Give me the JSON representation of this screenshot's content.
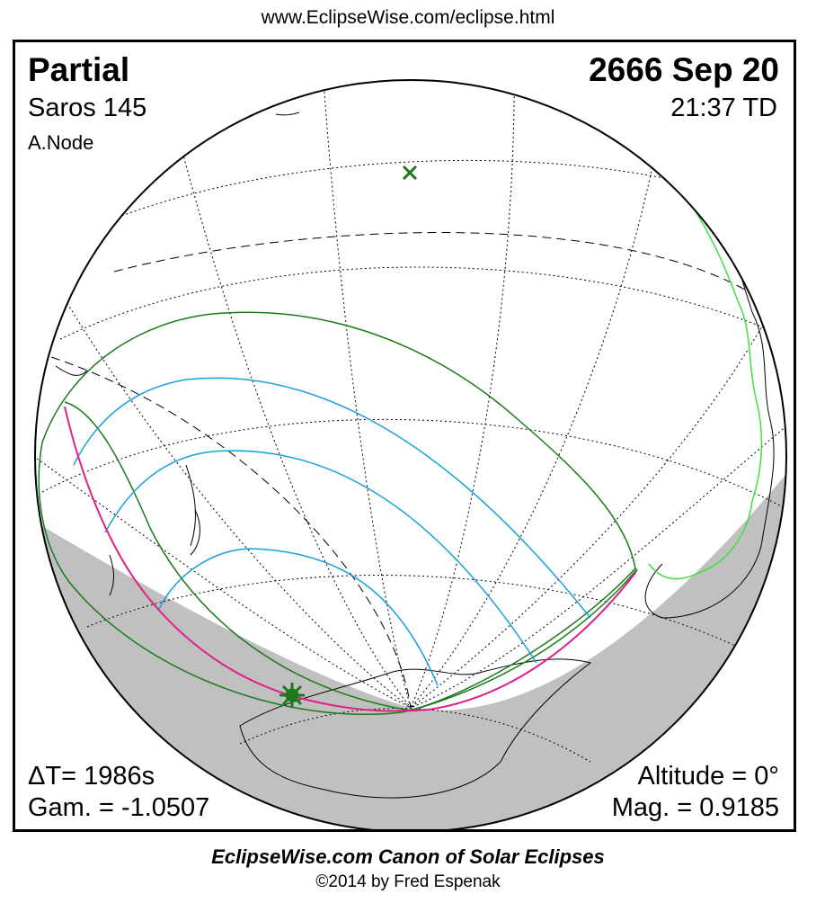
{
  "header": {
    "url": "www.EclipseWise.com/eclipse.html"
  },
  "info": {
    "eclipse_type": "Partial",
    "saros": "Saros 145",
    "node": "A.Node",
    "date": "2666 Sep 20",
    "time": "21:37 TD",
    "delta_t": "ΔT=   1986s",
    "gamma": "Gam. = -1.0507",
    "altitude": "Altitude =  0°",
    "magnitude": "Mag. = 0.9185"
  },
  "footer": {
    "title": "EclipseWise.com Canon of Solar Eclipses",
    "copyright": "©2014 by Fred Espenak"
  },
  "colors": {
    "night_shade": "#c0c0c0",
    "penumbral_limit": "#1a7a1a",
    "magnitude_curves": "#1aa0e0",
    "max_eclipse_line": "#e0208a",
    "coastline_highlight": "#40e040",
    "marker": "#1a7a1a"
  },
  "icons": {
    "sub_solar_marker": "x-mark-icon",
    "greatest_eclipse_marker": "sun-star-icon"
  }
}
